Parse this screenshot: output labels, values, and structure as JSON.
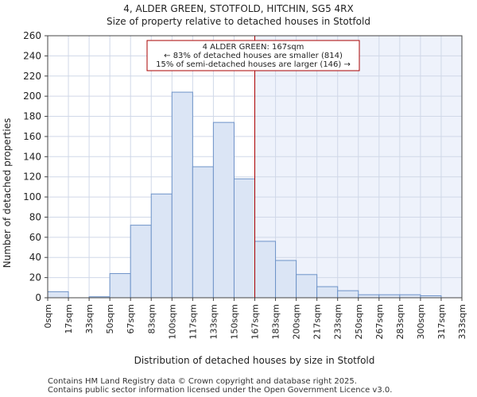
{
  "chart_data": {
    "type": "bar",
    "title_line1": "4, ALDER GREEN, STOTFOLD, HITCHIN, SG5 4RX",
    "title_line2": "Size of property relative to detached houses in Stotfold",
    "xlabel": "Distribution of detached houses by size in Stotfold",
    "ylabel": "Number of detached properties",
    "ylim": [
      0,
      260
    ],
    "yticks": [
      0,
      20,
      40,
      60,
      80,
      100,
      120,
      140,
      160,
      180,
      200,
      220,
      240,
      260
    ],
    "xticks": [
      "0sqm",
      "17sqm",
      "33sqm",
      "50sqm",
      "67sqm",
      "83sqm",
      "100sqm",
      "117sqm",
      "133sqm",
      "150sqm",
      "167sqm",
      "183sqm",
      "200sqm",
      "217sqm",
      "233sqm",
      "250sqm",
      "267sqm",
      "283sqm",
      "300sqm",
      "317sqm",
      "333sqm"
    ],
    "values": [
      6,
      0,
      1,
      24,
      72,
      103,
      204,
      130,
      174,
      118,
      56,
      37,
      23,
      11,
      7,
      3,
      3,
      3,
      2,
      0
    ],
    "marker_bin_index": 10,
    "annotation": {
      "line1": "4 ALDER GREEN: 167sqm",
      "line2": "← 83% of detached houses are smaller (814)",
      "line3": "15% of semi-detached houses are larger (146) →"
    },
    "colors": {
      "bar_fill": "#dbe5f5",
      "bar_stroke": "#6e93c8",
      "marker": "#aa0000",
      "shade": "#eef2fb",
      "grid": "#d0d8e8"
    }
  },
  "footer": {
    "line1": "Contains HM Land Registry data © Crown copyright and database right 2025.",
    "line2": "Contains public sector information licensed under the Open Government Licence v3.0."
  }
}
